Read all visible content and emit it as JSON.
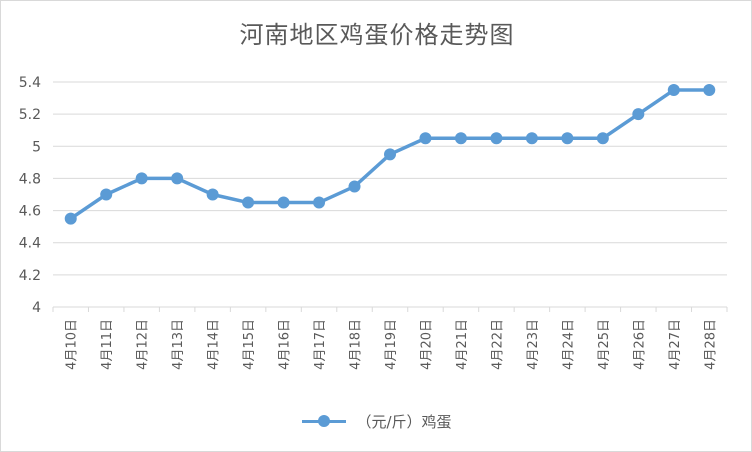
{
  "chart_data": {
    "type": "line",
    "title": "河南地区鸡蛋价格走势图",
    "categories": [
      "4月10日",
      "4月11日",
      "4月12日",
      "4月13日",
      "4月14日",
      "4月15日",
      "4月16日",
      "4月17日",
      "4月18日",
      "4月19日",
      "4月20日",
      "4月21日",
      "4月22日",
      "4月23日",
      "4月24日",
      "4月25日",
      "4月26日",
      "4月27日",
      "4月28日"
    ],
    "series": [
      {
        "name": "（元/斤）鸡蛋",
        "color": "#5b9bd5",
        "values": [
          4.55,
          4.7,
          4.8,
          4.8,
          4.7,
          4.65,
          4.65,
          4.65,
          4.75,
          4.95,
          5.05,
          5.05,
          5.05,
          5.05,
          5.05,
          5.05,
          5.2,
          5.35,
          5.35
        ]
      }
    ],
    "ylim": [
      4,
      5.4
    ],
    "yticks": [
      "4",
      "4.2",
      "4.4",
      "4.6",
      "4.8",
      "5",
      "5.2",
      "5.4"
    ],
    "xlabel": "",
    "ylabel": "",
    "grid": true,
    "legend_position": "bottom"
  }
}
